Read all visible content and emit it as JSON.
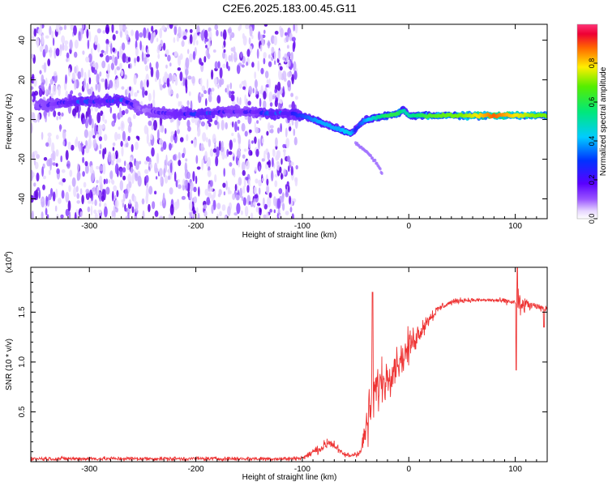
{
  "title": "C2E6.2025.183.00.45.G11",
  "colors": {
    "background": "#ffffff",
    "axis": "#000000",
    "scatter_dots": "#5500ee",
    "snr_line": "#ee3333"
  },
  "chart_data": [
    {
      "type": "heatmap",
      "name": "spectrogram",
      "xlabel": "Height of straight line (km)",
      "ylabel": "Frequency (Hz)",
      "xlim": [
        -355,
        130
      ],
      "ylim": [
        -50,
        48
      ],
      "xticks": [
        -300,
        -200,
        -100,
        0,
        100
      ],
      "yticks": [
        -40,
        -20,
        0,
        20,
        40
      ],
      "grid": false,
      "colorbar": {
        "label": "Normalized spectral amplitude",
        "range": [
          0,
          1
        ],
        "ticks": [
          "0.0",
          "0.2",
          "0.4",
          "0.6",
          "0.8"
        ],
        "colormap": "rainbow (white-violet-blue-cyan-green-yellow-red-magenta)"
      },
      "noise_region": {
        "x": [
          -355,
          -105
        ],
        "y": [
          -50,
          48
        ]
      },
      "ridge": {
        "x": [
          -350,
          -330,
          -310,
          -290,
          -270,
          -250,
          -230,
          -210,
          -190,
          -170,
          -150,
          -130,
          -110,
          -95,
          -85,
          -75,
          -65,
          -55,
          -50,
          -45,
          -40,
          -30,
          -20,
          -10,
          -5,
          0,
          20,
          50,
          80,
          100,
          120,
          130
        ],
        "frequency": [
          7,
          8,
          9,
          9,
          10,
          5,
          3,
          3,
          3,
          4,
          4,
          3,
          3,
          1,
          -1,
          -3,
          -5,
          -7,
          -5,
          -2,
          0,
          1,
          2,
          3,
          5,
          2,
          2,
          2,
          2,
          2,
          2,
          2
        ],
        "amplitude": [
          0.15,
          0.2,
          0.3,
          0.25,
          0.3,
          0.1,
          0.2,
          0.25,
          0.3,
          0.2,
          0.2,
          0.3,
          0.3,
          0.35,
          0.4,
          0.4,
          0.4,
          0.45,
          0.3,
          0.35,
          0.4,
          0.5,
          0.6,
          0.6,
          0.5,
          0.5,
          0.65,
          0.7,
          0.9,
          0.8,
          0.7,
          0.7
        ]
      },
      "tail": {
        "x": [
          -50,
          -40,
          -30,
          -25
        ],
        "frequency": [
          -12,
          -16,
          -22,
          -27
        ]
      }
    },
    {
      "type": "line",
      "name": "snr",
      "xlabel": "Height of straight line (km)",
      "ylabel": "SNR (10 * v/v)",
      "scale_label": "(x10",
      "scale_exponent": "4",
      "scale_close": ")",
      "xlim": [
        -355,
        130
      ],
      "ylim": [
        0,
        1.95
      ],
      "xticks": [
        -300,
        -200,
        -100,
        0,
        100
      ],
      "yticks": [
        0.5,
        1.0,
        1.5
      ],
      "grid": false,
      "envelope": {
        "x": [
          -355,
          -110,
          -100,
          -95,
          -90,
          -80,
          -75,
          -70,
          -65,
          -60,
          -55,
          -50,
          -45,
          -40,
          -35,
          -30,
          -25,
          -20,
          -15,
          -10,
          -5,
          0,
          10,
          20,
          30,
          40,
          50,
          60,
          80,
          100,
          105,
          110,
          120,
          130
        ],
        "mean": [
          0.03,
          0.03,
          0.04,
          0.06,
          0.1,
          0.15,
          0.2,
          0.17,
          0.1,
          0.07,
          0.06,
          0.08,
          0.1,
          0.35,
          0.55,
          0.75,
          0.8,
          0.85,
          0.95,
          1.0,
          1.05,
          1.15,
          1.3,
          1.45,
          1.55,
          1.6,
          1.62,
          1.62,
          1.62,
          1.6,
          1.55,
          1.58,
          1.55,
          1.55
        ],
        "spread": [
          0.03,
          0.03,
          0.03,
          0.04,
          0.06,
          0.08,
          0.1,
          0.08,
          0.05,
          0.04,
          0.04,
          0.05,
          0.08,
          0.3,
          0.45,
          0.35,
          0.35,
          0.3,
          0.3,
          0.25,
          0.25,
          0.25,
          0.15,
          0.1,
          0.06,
          0.04,
          0.04,
          0.03,
          0.03,
          0.05,
          0.3,
          0.1,
          0.05,
          0.08
        ]
      },
      "spikes": [
        {
          "x": -34,
          "y": 1.7
        },
        {
          "x": 102,
          "y": 1.95
        },
        {
          "x": 101,
          "y": 0.92
        },
        {
          "x": 127,
          "y": 1.35
        }
      ]
    }
  ]
}
